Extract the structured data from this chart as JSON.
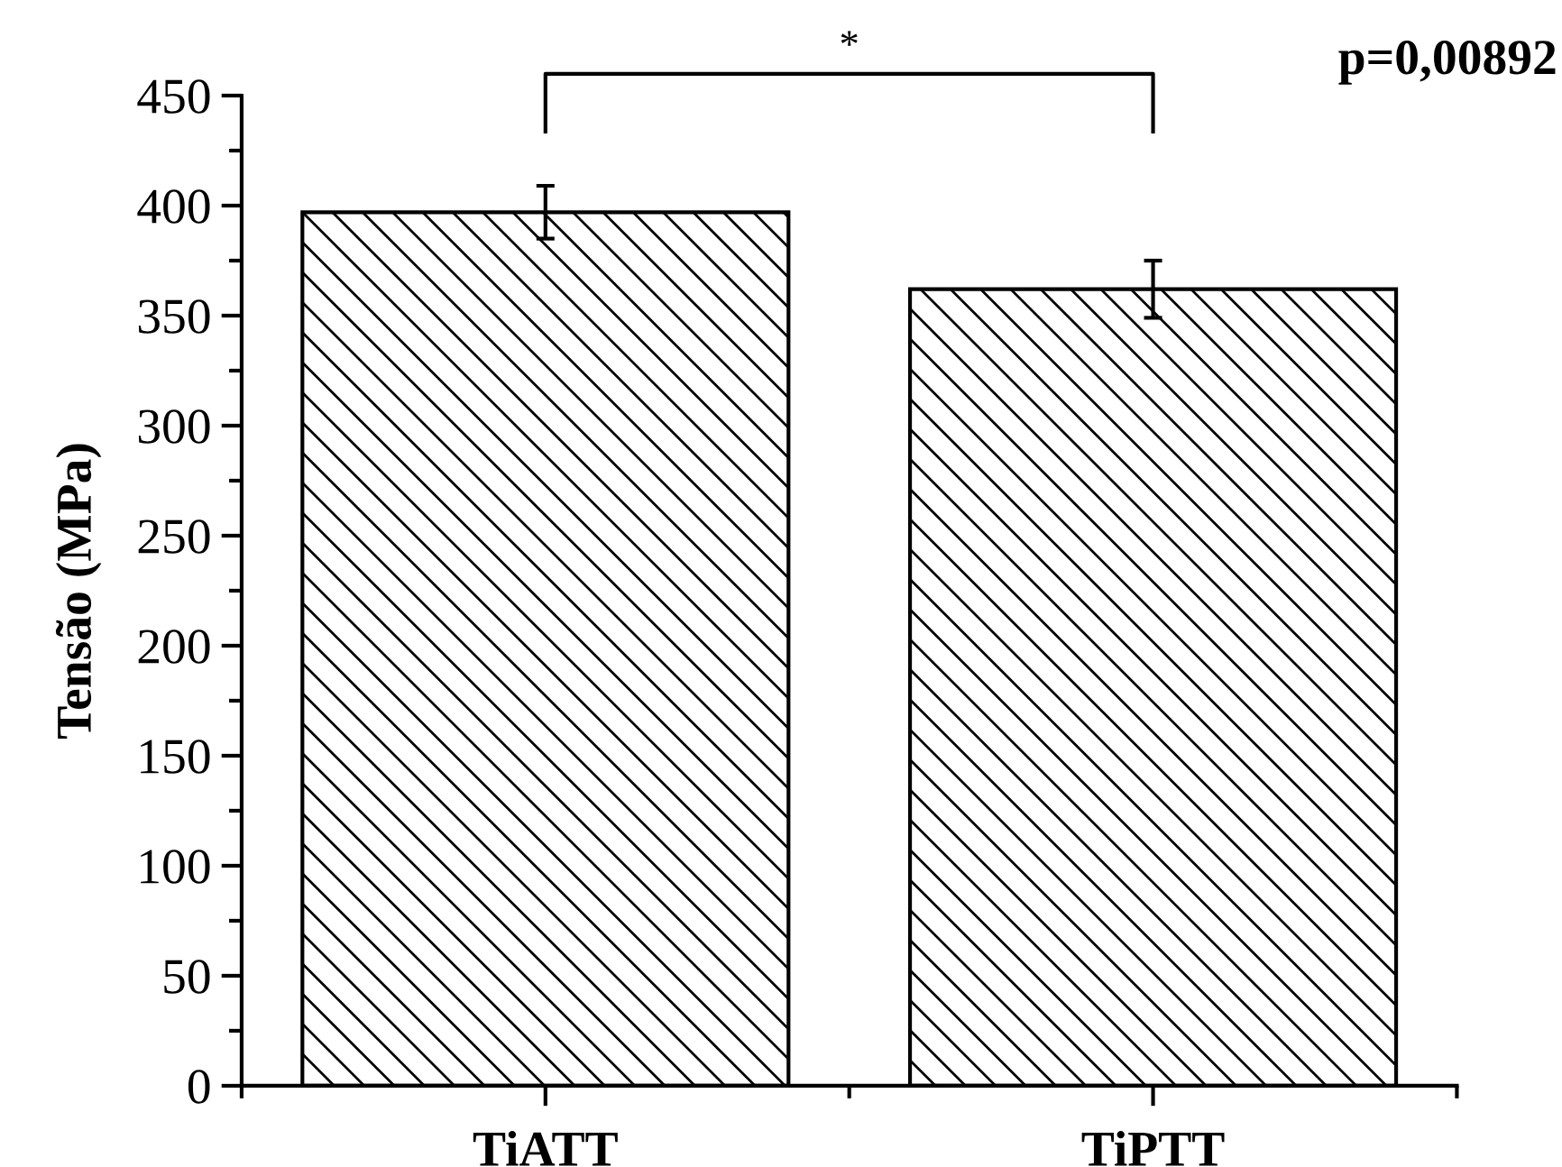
{
  "chart_data": {
    "type": "bar",
    "ylabel": "Tensão (MPa)",
    "categories": [
      "TiATT",
      "TiPTT"
    ],
    "values": [
      397,
      362
    ],
    "errors": [
      12,
      13
    ],
    "color": "#000000",
    "ylim": [
      0,
      450
    ],
    "yticks": [
      0,
      50,
      100,
      150,
      200,
      250,
      300,
      350,
      400,
      450
    ],
    "annotations": [
      "*",
      "p=0,00892"
    ]
  }
}
